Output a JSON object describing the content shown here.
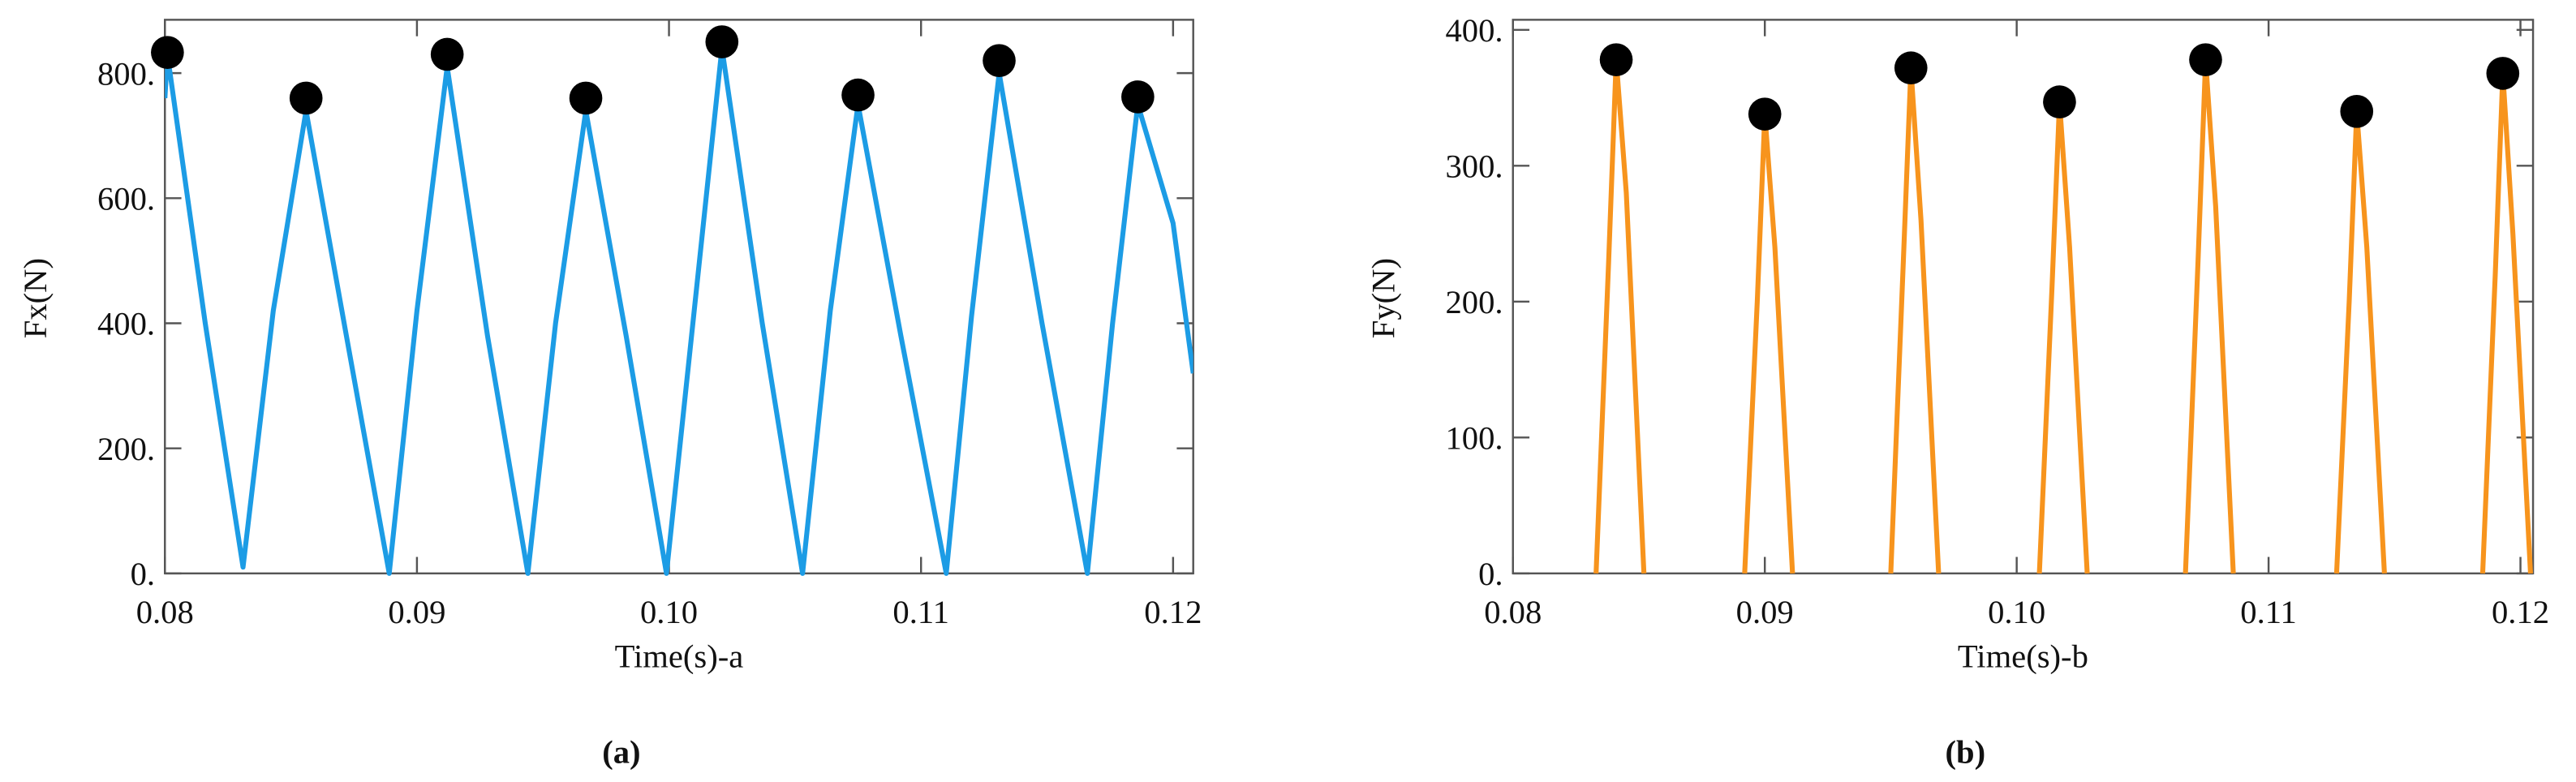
{
  "chart_data": [
    {
      "type": "line",
      "xlabel": "Time(s)-a",
      "ylabel": "Fx(N)",
      "caption": "(a)",
      "xlim": [
        0.08,
        0.1208
      ],
      "ylim": [
        0,
        880
      ],
      "xticks": [
        0.08,
        0.09,
        {
          "value": 0.1,
          "label": "0.10"
        },
        0.11,
        0.12
      ],
      "yticks": [
        {
          "value": 0,
          "label": "0."
        },
        {
          "value": 200,
          "label": "200."
        },
        {
          "value": 400,
          "label": "400."
        },
        {
          "value": 600,
          "label": "600."
        },
        {
          "value": 800,
          "label": "800."
        }
      ],
      "series": [
        {
          "color": "#1c9ce5",
          "marker": "none",
          "x": [
            0.08,
            0.0801,
            0.0816,
            0.0831,
            0.0843,
            0.0856,
            0.0872,
            0.0889,
            0.09,
            0.0912,
            0.0928,
            0.0944,
            0.0955,
            0.0967,
            0.0983,
            0.0999,
            0.101,
            0.1021,
            0.1037,
            0.1053,
            0.1064,
            0.1075,
            0.1092,
            0.111,
            0.112,
            0.1131,
            0.1148,
            0.1166,
            0.1176,
            0.1186,
            0.12,
            0.1208
          ],
          "values": [
            760,
            830,
            400,
            10,
            420,
            740,
            380,
            0,
            420,
            810,
            380,
            0,
            400,
            740,
            380,
            0,
            420,
            840,
            400,
            0,
            420,
            750,
            380,
            0,
            410,
            800,
            400,
            0,
            400,
            750,
            560,
            320
          ]
        },
        {
          "color": "#000000",
          "marker": "circle",
          "x": [
            0.0801,
            0.0856,
            0.0912,
            0.0967,
            0.1021,
            0.1075,
            0.1131,
            0.1186
          ],
          "values": [
            833,
            760,
            830,
            760,
            850,
            765,
            820,
            762
          ]
        }
      ]
    },
    {
      "type": "line",
      "xlabel": "Time(s)-b",
      "ylabel": "Fy(N)",
      "caption": "(b)",
      "xlim": [
        0.08,
        0.1205
      ],
      "ylim": [
        0,
        405
      ],
      "xticks": [
        0.08,
        0.09,
        {
          "value": 0.1,
          "label": "0.10"
        },
        0.11,
        0.12
      ],
      "yticks": [
        {
          "value": 0,
          "label": "0."
        },
        {
          "value": 100,
          "label": "100."
        },
        {
          "value": 200,
          "label": "200."
        },
        {
          "value": 300,
          "label": "300."
        },
        {
          "value": 400,
          "label": "400."
        }
      ],
      "series": [
        {
          "color": "#f7941d",
          "marker": "none",
          "x": [
            0.0833,
            0.0838,
            0.0841,
            0.0845,
            0.0852,
            0.087,
            0.0892,
            0.0897,
            0.09,
            0.0904,
            0.0911,
            0.093,
            0.095,
            0.0955,
            0.0958,
            0.0962,
            0.0969,
            0.099,
            0.1009,
            0.1014,
            0.1017,
            0.1021,
            0.1028,
            0.1045,
            0.1067,
            0.1072,
            0.1075,
            0.1079,
            0.1086,
            0.1105,
            0.1127,
            0.1132,
            0.1135,
            0.1139,
            0.1146,
            0.1165,
            0.1185,
            0.119,
            0.1193,
            0.1197,
            0.1204
          ],
          "values": [
            0,
            230,
            378,
            280,
            0,
            null,
            0,
            200,
            338,
            240,
            0,
            null,
            0,
            230,
            372,
            260,
            0,
            null,
            0,
            210,
            347,
            240,
            0,
            null,
            0,
            230,
            378,
            270,
            0,
            null,
            0,
            200,
            340,
            240,
            0,
            null,
            0,
            220,
            368,
            250,
            0
          ]
        },
        {
          "color": "#000000",
          "marker": "circle",
          "x": [
            0.0841,
            0.09,
            0.0958,
            0.1017,
            0.1075,
            0.1135,
            0.1193
          ],
          "values": [
            378,
            338,
            372,
            347,
            378,
            340,
            368
          ]
        }
      ]
    }
  ]
}
